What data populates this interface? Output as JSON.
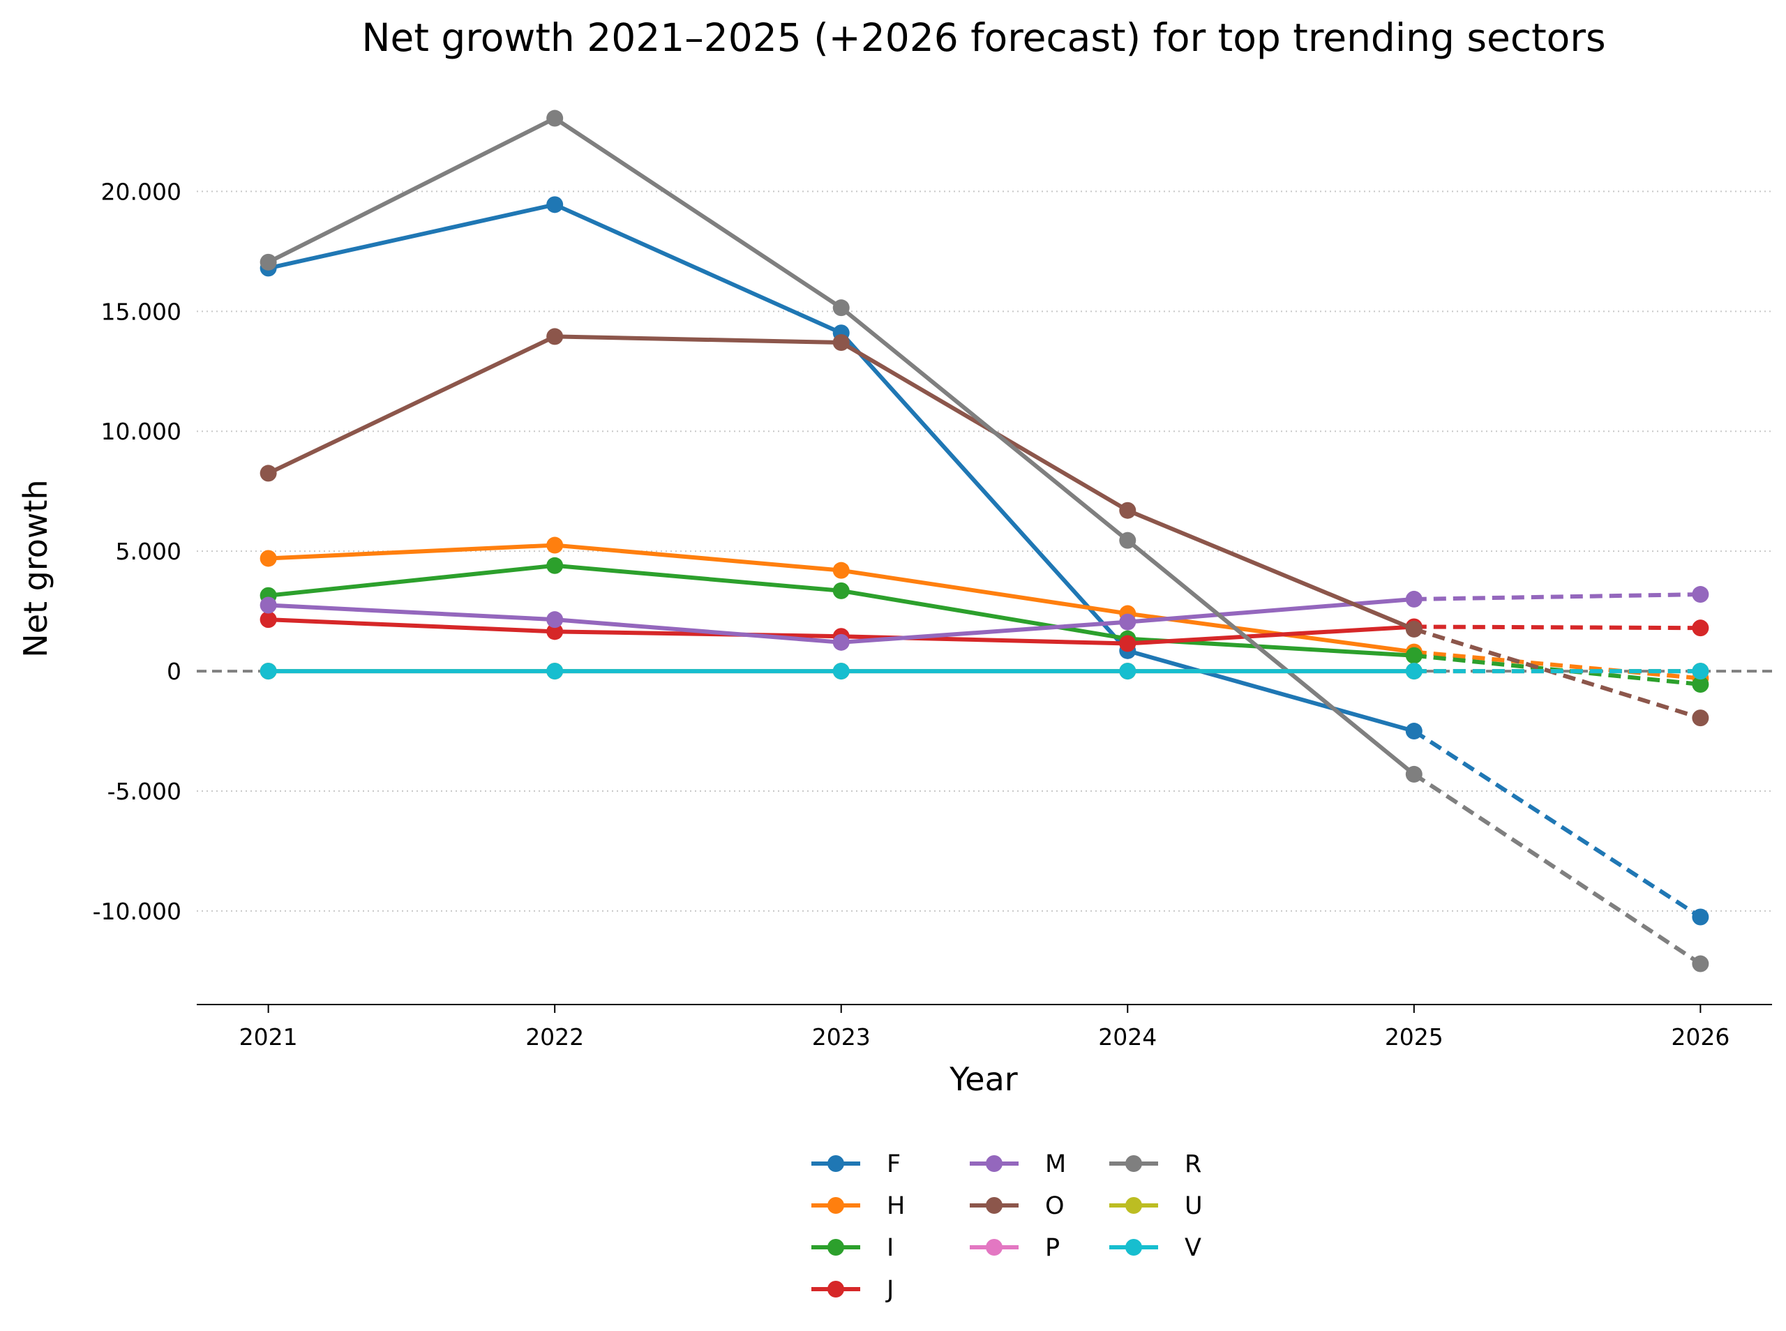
{
  "chart_data": {
    "type": "line",
    "title": "Net growth 2021–2025 (+2026 forecast) for top trending sectors",
    "xlabel": "Year",
    "ylabel": "Net growth",
    "x": [
      2021,
      2022,
      2023,
      2024,
      2025,
      2026
    ],
    "x_tick_labels": [
      "2021",
      "2022",
      "2023",
      "2024",
      "2025",
      "2026"
    ],
    "y_ticks": [
      -10000,
      -5000,
      0,
      5000,
      10000,
      15000,
      20000
    ],
    "y_tick_labels": [
      "-10.000",
      "-5.000",
      "0",
      "5.000",
      "10.000",
      "15.000",
      "20.000"
    ],
    "ylim": [
      -13900,
      24200
    ],
    "xlim": [
      2020.75,
      2026.25
    ],
    "grid": "y dotted",
    "reference_line": 0,
    "forecast_style": "dashed segment from 2025 to 2026",
    "legend_placement": "below plot, 3 columns",
    "series": [
      {
        "name": "F",
        "color": "#1f77b4",
        "values": [
          16800,
          19450,
          14100,
          850,
          -2500,
          -10250
        ]
      },
      {
        "name": "H",
        "color": "#ff7f0e",
        "values": [
          4700,
          5250,
          4200,
          2400,
          800,
          -300
        ]
      },
      {
        "name": "I",
        "color": "#2ca02c",
        "values": [
          3150,
          4400,
          3350,
          1350,
          650,
          -550
        ]
      },
      {
        "name": "J",
        "color": "#d62728",
        "values": [
          2150,
          1650,
          1450,
          1150,
          1850,
          1800
        ]
      },
      {
        "name": "M",
        "color": "#9467bd",
        "values": [
          2750,
          2150,
          1200,
          2050,
          3000,
          3200
        ]
      },
      {
        "name": "O",
        "color": "#8c564b",
        "values": [
          8250,
          13950,
          13700,
          6700,
          1750,
          -1950
        ]
      },
      {
        "name": "P",
        "color": "#e377c2",
        "values": [
          0,
          0,
          0,
          0,
          0,
          0
        ]
      },
      {
        "name": "R",
        "color": "#7f7f7f",
        "values": [
          17050,
          23050,
          15150,
          5450,
          -4300,
          -12200
        ]
      },
      {
        "name": "U",
        "color": "#bcbd22",
        "values": [
          0,
          0,
          0,
          0,
          0,
          0
        ]
      },
      {
        "name": "V",
        "color": "#17becf",
        "values": [
          0,
          0,
          0,
          0,
          0,
          0
        ]
      }
    ]
  }
}
